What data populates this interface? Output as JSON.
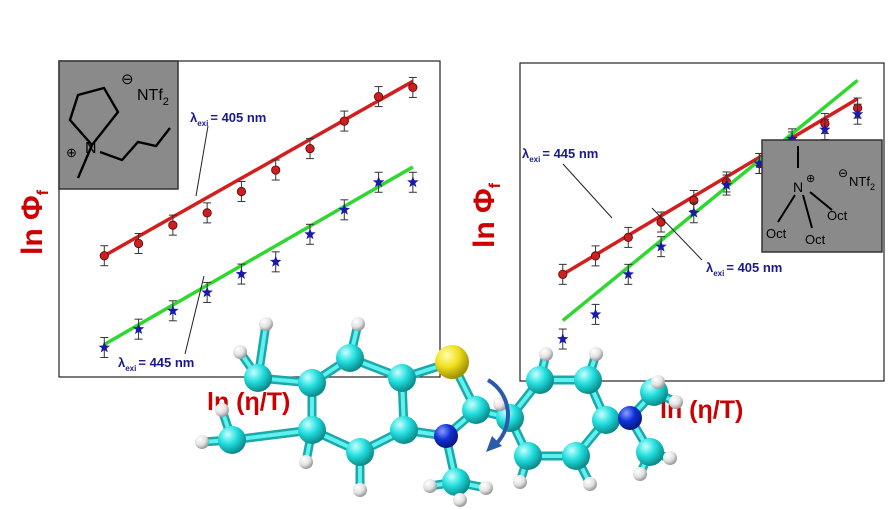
{
  "colors": {
    "red_series": "#cc1f1f",
    "red_line": "#d41e1e",
    "green_series": "#1a1aa8",
    "green_line": "#2fd82f",
    "axis_label": "#cc0000",
    "annotation": "#1a1a8c",
    "inset_bg": "#8a8a8a",
    "atom_c": "#22dede",
    "atom_h": "#e8e8e8",
    "atom_n": "#1030d8",
    "atom_s": "#f0e020"
  },
  "charts": {
    "left": {
      "ylabel": "ln Φ",
      "ylabel_sub": "f",
      "xlabel": "ln (η/T)",
      "annotation_top": {
        "prefix": "λ",
        "sub": "exi",
        "text": "= 405 nm"
      },
      "annotation_bottom": {
        "prefix": "λ",
        "sub": "exi",
        "text": "= 445 nm"
      },
      "inset": {
        "anion": "NTf",
        "anion_sub": "2",
        "cation_n": "N"
      }
    },
    "right": {
      "ylabel": "ln Φ",
      "ylabel_sub": "f",
      "xlabel": "ln (η/T)",
      "annotation_top": {
        "prefix": "λ",
        "sub": "exi",
        "text": "= 445 nm"
      },
      "annotation_bottom": {
        "prefix": "λ",
        "sub": "exi",
        "text": "= 405 nm"
      },
      "inset": {
        "anion": "NTf",
        "anion_sub": "2",
        "cation_n": "N",
        "oct": [
          "Oct",
          "Oct",
          "Oct"
        ]
      }
    }
  },
  "chart_data": [
    {
      "type": "scatter",
      "xlabel": "ln (η/T)",
      "ylabel": "ln Φf",
      "xlim": [
        0,
        10.5
      ],
      "ylim": [
        0,
        10
      ],
      "series": [
        {
          "name": "λexi = 405 nm",
          "marker": "circle",
          "x": [
            1,
            2,
            3,
            4,
            5,
            6,
            7,
            8,
            9,
            10
          ],
          "y": [
            3.8,
            4.2,
            4.8,
            5.2,
            5.9,
            6.6,
            7.3,
            8.2,
            9.0,
            9.3
          ],
          "fit": [
            3.8,
            9.5
          ]
        },
        {
          "name": "λexi = 445 nm",
          "marker": "star",
          "x": [
            1,
            2,
            3,
            4,
            5,
            6,
            7,
            8,
            9,
            10
          ],
          "y": [
            0.8,
            1.4,
            2.0,
            2.6,
            3.2,
            3.6,
            4.5,
            5.3,
            6.2,
            6.2
          ],
          "fit": [
            0.9,
            6.7
          ]
        }
      ]
    },
    {
      "type": "scatter",
      "xlabel": "ln (η/T)",
      "ylabel": "ln Φf",
      "xlim": [
        0,
        10.5
      ],
      "ylim": [
        0,
        10
      ],
      "series": [
        {
          "name": "λexi = 405 nm",
          "marker": "circle",
          "x": [
            1,
            2,
            3,
            4,
            5,
            6,
            7,
            8,
            9,
            10
          ],
          "y": [
            3.3,
            3.9,
            4.5,
            5.0,
            5.7,
            6.3,
            6.9,
            7.6,
            8.2,
            8.7
          ],
          "fit": [
            3.3,
            9.0
          ]
        },
        {
          "name": "λexi = 445 nm",
          "marker": "star",
          "x": [
            1,
            2,
            3,
            4,
            5,
            6,
            7,
            8,
            9,
            10
          ],
          "y": [
            1.2,
            2.0,
            3.3,
            4.2,
            5.3,
            6.2,
            6.9,
            7.7,
            8.0,
            8.5
          ],
          "fit": [
            1.8,
            9.6
          ]
        }
      ]
    }
  ]
}
